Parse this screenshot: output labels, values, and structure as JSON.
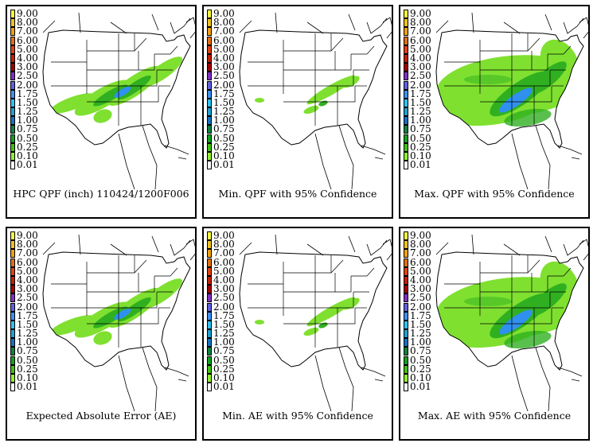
{
  "panels": [
    {
      "id": "p1",
      "caption": "HPC QPF (inch) 110424/1200F006",
      "intensity": "base"
    },
    {
      "id": "p2",
      "caption": "Min. QPF with 95% Confidence",
      "intensity": "low"
    },
    {
      "id": "p3",
      "caption": "Max. QPF with 95% Confidence",
      "intensity": "high"
    },
    {
      "id": "p4",
      "caption": "Expected Absolute Error (AE)",
      "intensity": "base"
    },
    {
      "id": "p5",
      "caption": "Min. AE with 95% Confidence",
      "intensity": "low"
    },
    {
      "id": "p6",
      "caption": "Max. AE with 95% Confidence",
      "intensity": "high"
    }
  ],
  "legend": {
    "levels": [
      "9.00",
      "8.00",
      "7.00",
      "6.00",
      "5.00",
      "4.00",
      "3.00",
      "2.50",
      "2.00",
      "1.75",
      "1.50",
      "1.25",
      "1.00",
      "0.75",
      "0.50",
      "0.25",
      "0.10",
      "0.01"
    ],
    "colors": [
      "#f7f740",
      "#f0c020",
      "#f0a010",
      "#e07010",
      "#e04010",
      "#c02000",
      "#a00000",
      "#8030c0",
      "#6060e0",
      "#4090f0",
      "#30c0f0",
      "#20a0d0",
      "#1870c0",
      "#108040",
      "#10a020",
      "#40c010",
      "#90f030",
      "#ffffff"
    ]
  }
}
